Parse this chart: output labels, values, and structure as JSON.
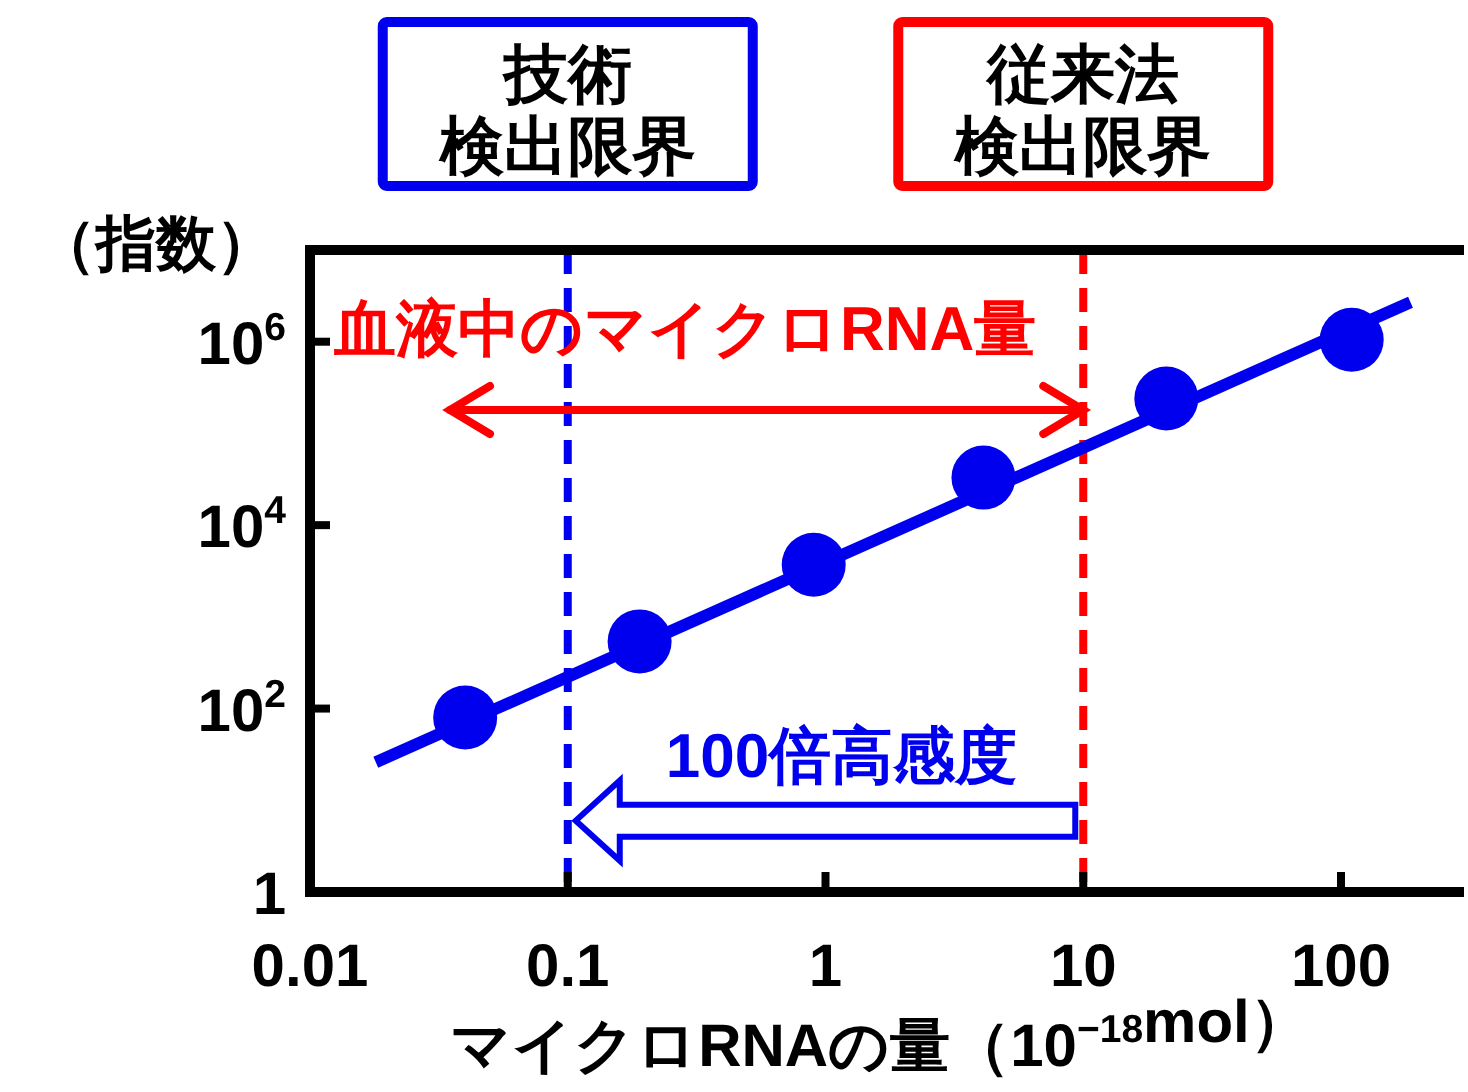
{
  "chart_data": {
    "type": "scatter",
    "xlabel": "マイクロRNAの量（10$^{−18}$mol）",
    "ylabel": "（指数）",
    "log": "xy",
    "xlim": [
      0.01,
      300
    ],
    "ylim": [
      1,
      10000000
    ],
    "xticks": [
      0.01,
      0.1,
      1,
      10,
      100
    ],
    "yticks": [
      1,
      {
        "value": 100,
        "label": "10$^{2}$"
      },
      {
        "value": 10000,
        "label": "10$^{4}$"
      },
      {
        "value": 1000000,
        "label": "10$^{6}$"
      }
    ],
    "series": [
      {
        "marker": "circle",
        "color": "#0000ee",
        "x": [
          0.04,
          0.19,
          0.9,
          4.1,
          21,
          110
        ],
        "values": [
          80,
          540,
          3700,
          33000,
          240000,
          1050000
        ]
      },
      {
        "type": "line",
        "marker": "none",
        "color": "#0000ee",
        "x": [
          0.018,
          186
        ],
        "values": [
          26,
          2700000
        ]
      }
    ],
    "ref_lines": [
      {
        "axis": "x",
        "value": 0.1,
        "label": "技術検出限界",
        "color": "#0000ee",
        "line_style": "dashed"
      },
      {
        "axis": "x",
        "value": 10,
        "label": "従来法検出限界",
        "color": "#ff0000",
        "line_style": "dashed"
      }
    ],
    "annotations": [
      "血液中のマイクロRNA量",
      {
        "text": "100倍高感度",
        "x": 10,
        "y": 6
      }
    ]
  }
}
